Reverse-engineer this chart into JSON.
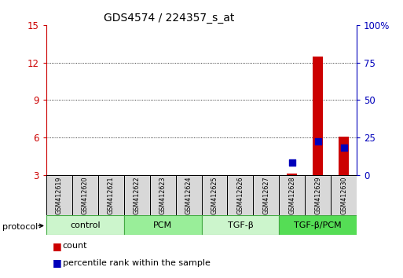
{
  "title": "GDS4574 / 224357_s_at",
  "samples": [
    "GSM412619",
    "GSM412620",
    "GSM412621",
    "GSM412622",
    "GSM412623",
    "GSM412624",
    "GSM412625",
    "GSM412626",
    "GSM412627",
    "GSM412628",
    "GSM412629",
    "GSM412630"
  ],
  "count_values": [
    null,
    null,
    null,
    null,
    null,
    null,
    null,
    null,
    null,
    3.1,
    12.5,
    6.1
  ],
  "percentile_left_values": [
    null,
    null,
    null,
    null,
    null,
    null,
    null,
    null,
    null,
    4.0,
    5.7,
    5.2
  ],
  "groups": [
    {
      "label": "control",
      "start": 0,
      "end": 3,
      "color": "#ccf5cc"
    },
    {
      "label": "PCM",
      "start": 3,
      "end": 6,
      "color": "#99ee99"
    },
    {
      "label": "TGF-β",
      "start": 6,
      "end": 9,
      "color": "#ccf5cc"
    },
    {
      "label": "TGF-β/PCM",
      "start": 9,
      "end": 12,
      "color": "#55dd55"
    }
  ],
  "ylim_left": [
    3,
    15
  ],
  "yticks_left": [
    3,
    6,
    9,
    12,
    15
  ],
  "ylim_right": [
    0,
    100
  ],
  "yticks_right": [
    0,
    25,
    50,
    75,
    100
  ],
  "bar_color": "#cc0000",
  "dot_color": "#0000bb",
  "bar_width": 0.4,
  "dot_size": 30,
  "left_tick_color": "#cc0000",
  "right_tick_color": "#0000bb",
  "protocol_label": "protocol",
  "legend_count": "count",
  "legend_percentile": "percentile rank within the sample",
  "background_color": "#ffffff",
  "sample_box_color": "#d8d8d8",
  "group_border_color": "#44aa44"
}
